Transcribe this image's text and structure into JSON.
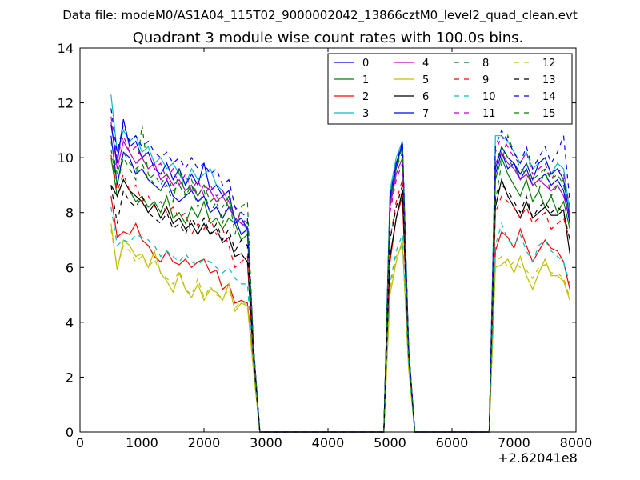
{
  "header": {
    "suptitle": "Data file: modeM0/AS1A04_115T02_9000002042_13866cztM0_level2_quad_clean.evt"
  },
  "chart_data": {
    "type": "line",
    "title": "Quadrant 3 module wise count rates with 100.0s bins.",
    "xlabel": "",
    "ylabel": "",
    "x_offset_label": "+2.62041e8",
    "xlim": [
      0,
      8000
    ],
    "ylim": [
      0,
      14
    ],
    "xticks": [
      0,
      1000,
      2000,
      3000,
      4000,
      5000,
      6000,
      7000,
      8000
    ],
    "xtick_labels": [
      "0",
      "1000",
      "2000",
      "3000",
      "4000",
      "5000",
      "6000",
      "7000",
      "8000"
    ],
    "yticks": [
      0,
      2,
      4,
      6,
      8,
      10,
      12,
      14
    ],
    "ytick_labels": [
      "0",
      "2",
      "4",
      "6",
      "8",
      "10",
      "12",
      "14"
    ],
    "grid": false,
    "legend_position": "top-right",
    "legend_columns": 4,
    "x": [
      500,
      600,
      700,
      800,
      900,
      1000,
      1100,
      1200,
      1300,
      1400,
      1500,
      1600,
      1700,
      1800,
      1900,
      2000,
      2100,
      2200,
      2300,
      2400,
      2500,
      2600,
      2700,
      2800,
      2900,
      3000,
      3500,
      4000,
      4500,
      4900,
      5000,
      5100,
      5200,
      5300,
      5400,
      5500,
      5600,
      6000,
      6500,
      6600,
      6700,
      6800,
      6900,
      7000,
      7100,
      7200,
      7300,
      7400,
      7500,
      7600,
      7700,
      7800,
      7900
    ],
    "series": [
      {
        "name": "0",
        "color": "#0000ff",
        "dash": "solid",
        "values": [
          10.8,
          9.0,
          10.2,
          10.0,
          9.4,
          9.6,
          9.2,
          9.0,
          8.8,
          9.2,
          8.6,
          8.4,
          8.6,
          8.8,
          8.4,
          8.6,
          8.0,
          8.2,
          7.8,
          8.2,
          7.8,
          7.2,
          7.4,
          3.0,
          0,
          0,
          0,
          0,
          0,
          0,
          8.4,
          9.6,
          10.6,
          3.0,
          0,
          0,
          0,
          0,
          0,
          0,
          9.4,
          10.2,
          9.6,
          9.8,
          9.2,
          9.6,
          9.0,
          9.2,
          9.4,
          9.0,
          9.2,
          8.8,
          7.6
        ]
      },
      {
        "name": "1",
        "color": "#008000",
        "dash": "solid",
        "values": [
          10.0,
          8.6,
          9.2,
          8.8,
          8.4,
          8.6,
          8.2,
          8.4,
          8.0,
          8.6,
          7.8,
          8.0,
          7.6,
          8.2,
          7.8,
          8.4,
          7.6,
          7.8,
          7.4,
          7.8,
          7.6,
          7.0,
          7.2,
          2.9,
          0,
          0,
          0,
          0,
          0,
          0,
          8.6,
          9.8,
          10.4,
          3.0,
          0,
          0,
          0,
          0,
          0,
          0,
          9.2,
          10.0,
          9.4,
          9.0,
          8.6,
          9.2,
          8.4,
          8.8,
          8.2,
          8.6,
          8.0,
          8.4,
          7.4
        ]
      },
      {
        "name": "2",
        "color": "#ff0000",
        "dash": "solid",
        "values": [
          8.6,
          7.1,
          7.3,
          7.2,
          7.6,
          7.0,
          6.8,
          6.4,
          6.2,
          6.6,
          6.2,
          6.1,
          6.3,
          6.0,
          6.2,
          6.3,
          5.8,
          5.9,
          5.2,
          5.4,
          4.7,
          4.8,
          4.7,
          2.4,
          0,
          0,
          0,
          0,
          0,
          0,
          6.2,
          7.8,
          8.6,
          2.6,
          0,
          0,
          0,
          0,
          0,
          0,
          6.6,
          7.3,
          7.1,
          6.7,
          7.4,
          6.8,
          6.2,
          6.6,
          7.0,
          6.7,
          6.6,
          6.2,
          5.2
        ]
      },
      {
        "name": "3",
        "color": "#00bfbf",
        "dash": "solid",
        "values": [
          12.3,
          10.2,
          11.0,
          10.6,
          10.8,
          10.2,
          10.4,
          9.8,
          10.0,
          9.6,
          9.8,
          9.4,
          9.0,
          9.6,
          9.2,
          9.4,
          9.6,
          9.0,
          8.8,
          8.4,
          7.8,
          7.6,
          7.4,
          3.0,
          0,
          0,
          0,
          0,
          0,
          0,
          8.8,
          10.0,
          10.6,
          3.1,
          0,
          0,
          0,
          0,
          0,
          0,
          10.8,
          10.8,
          10.6,
          10.2,
          9.8,
          10.2,
          9.6,
          9.8,
          10.0,
          9.4,
          9.8,
          9.6,
          8.0
        ]
      },
      {
        "name": "4",
        "color": "#bf00bf",
        "dash": "solid",
        "values": [
          11.3,
          9.6,
          10.6,
          10.2,
          9.8,
          10.0,
          9.6,
          9.8,
          9.2,
          9.4,
          9.0,
          9.2,
          8.8,
          9.0,
          8.6,
          9.0,
          8.8,
          8.4,
          8.6,
          8.2,
          7.8,
          7.6,
          7.5,
          3.0,
          0,
          0,
          0,
          0,
          0,
          0,
          8.2,
          9.4,
          10.0,
          3.0,
          0,
          0,
          0,
          0,
          0,
          0,
          9.8,
          10.2,
          9.8,
          9.6,
          9.2,
          9.4,
          9.0,
          9.2,
          9.0,
          8.8,
          9.0,
          8.6,
          7.8
        ]
      },
      {
        "name": "5",
        "color": "#bfbf00",
        "dash": "solid",
        "values": [
          7.6,
          5.9,
          7.0,
          6.8,
          6.4,
          6.5,
          6.0,
          6.6,
          5.8,
          5.5,
          5.1,
          5.8,
          5.2,
          4.9,
          5.4,
          4.8,
          5.2,
          5.1,
          4.8,
          5.4,
          4.4,
          4.7,
          4.6,
          2.2,
          0,
          0,
          0,
          0,
          0,
          0,
          5.0,
          6.2,
          7.0,
          2.3,
          0,
          0,
          0,
          0,
          0,
          0,
          6.0,
          6.1,
          6.3,
          5.8,
          6.4,
          5.7,
          5.2,
          5.8,
          6.3,
          5.7,
          5.7,
          5.5,
          4.8
        ]
      },
      {
        "name": "6",
        "color": "#000000",
        "dash": "solid",
        "values": [
          9.0,
          8.6,
          9.2,
          8.8,
          8.6,
          8.4,
          8.0,
          8.3,
          7.8,
          8.2,
          7.6,
          7.8,
          7.4,
          7.6,
          7.2,
          7.6,
          7.2,
          7.4,
          6.9,
          7.1,
          6.4,
          6.5,
          6.2,
          2.6,
          0,
          0,
          0,
          0,
          0,
          0,
          6.4,
          7.8,
          8.8,
          2.8,
          0,
          0,
          0,
          0,
          0,
          0,
          8.2,
          9.2,
          8.6,
          8.2,
          7.8,
          8.4,
          7.8,
          8.0,
          8.2,
          7.9,
          7.9,
          8.1,
          6.5
        ]
      },
      {
        "name": "7",
        "color": "#0000ff",
        "dash": "solid",
        "values": [
          11.2,
          9.8,
          11.4,
          10.4,
          10.6,
          10.0,
          10.2,
          9.6,
          9.4,
          9.8,
          9.2,
          9.6,
          9.0,
          9.4,
          9.0,
          9.8,
          8.8,
          9.0,
          8.6,
          8.8,
          7.6,
          7.8,
          7.4,
          3.0,
          0,
          0,
          0,
          0,
          0,
          0,
          8.4,
          9.8,
          10.5,
          3.0,
          0,
          0,
          0,
          0,
          0,
          0,
          9.6,
          10.4,
          10.0,
          9.8,
          9.4,
          9.8,
          9.2,
          9.8,
          10.0,
          9.4,
          9.6,
          9.2,
          7.8
        ]
      },
      {
        "name": "8",
        "color": "#008000",
        "dash": "dashed",
        "values": [
          10.3,
          9.0,
          10.0,
          9.6,
          9.2,
          11.2,
          9.4,
          9.0,
          8.8,
          9.0,
          8.4,
          9.6,
          8.6,
          9.0,
          8.2,
          8.8,
          8.0,
          8.4,
          7.6,
          8.6,
          7.2,
          8.2,
          8.4,
          3.0,
          0,
          0,
          0,
          0,
          0,
          0,
          8.6,
          9.6,
          10.4,
          3.0,
          0,
          0,
          0,
          0,
          0,
          0,
          8.4,
          9.8,
          10.8,
          10.2,
          9.6,
          9.4,
          9.2,
          8.8,
          9.6,
          8.6,
          9.0,
          9.2,
          8.2
        ]
      },
      {
        "name": "9",
        "color": "#ff0000",
        "dash": "dashed",
        "values": [
          10.1,
          8.8,
          9.4,
          8.8,
          9.0,
          8.4,
          8.6,
          8.2,
          8.4,
          8.0,
          8.2,
          7.8,
          8.0,
          7.2,
          7.6,
          7.4,
          7.8,
          7.2,
          7.4,
          6.8,
          6.0,
          6.2,
          6.4,
          2.6,
          0,
          0,
          0,
          0,
          0,
          0,
          7.0,
          8.4,
          9.2,
          2.9,
          0,
          0,
          0,
          0,
          0,
          0,
          8.0,
          8.6,
          8.4,
          8.2,
          7.8,
          8.2,
          7.6,
          7.8,
          8.0,
          7.4,
          7.6,
          7.8,
          7.0
        ]
      },
      {
        "name": "10",
        "color": "#00bfbf",
        "dash": "dashed",
        "values": [
          8.2,
          6.8,
          7.0,
          6.9,
          7.2,
          7.1,
          7.0,
          6.8,
          6.4,
          6.6,
          6.4,
          6.2,
          6.5,
          6.2,
          6.1,
          6.3,
          6.2,
          6.0,
          5.8,
          6.0,
          5.6,
          5.4,
          5.4,
          2.3,
          0,
          0,
          0,
          0,
          0,
          0,
          5.4,
          6.6,
          7.2,
          2.4,
          0,
          0,
          0,
          0,
          0,
          0,
          6.8,
          7.6,
          7.0,
          6.8,
          7.2,
          6.6,
          6.2,
          6.8,
          7.0,
          6.6,
          6.4,
          6.2,
          5.4
        ]
      },
      {
        "name": "11",
        "color": "#bf00bf",
        "dash": "dashed",
        "values": [
          11.5,
          10.0,
          10.8,
          10.2,
          10.4,
          10.0,
          10.2,
          9.6,
          9.8,
          9.2,
          9.6,
          9.0,
          9.4,
          8.8,
          9.2,
          8.6,
          9.0,
          8.6,
          8.8,
          8.4,
          8.2,
          7.6,
          7.8,
          3.0,
          0,
          0,
          0,
          0,
          0,
          0,
          8.0,
          9.2,
          9.8,
          3.0,
          0,
          0,
          0,
          0,
          0,
          0,
          10.2,
          10.8,
          10.4,
          10.0,
          9.8,
          10.2,
          9.4,
          9.6,
          9.8,
          9.2,
          9.6,
          9.4,
          8.2
        ]
      },
      {
        "name": "12",
        "color": "#bfbf00",
        "dash": "dashed",
        "values": [
          7.4,
          6.0,
          6.8,
          6.6,
          6.2,
          6.4,
          6.0,
          6.3,
          5.8,
          5.6,
          5.4,
          5.9,
          5.2,
          5.0,
          5.6,
          4.9,
          5.3,
          5.0,
          4.9,
          5.2,
          4.5,
          4.8,
          4.6,
          2.2,
          0,
          0,
          0,
          0,
          0,
          0,
          5.2,
          6.4,
          6.8,
          2.3,
          0,
          0,
          0,
          0,
          0,
          0,
          6.2,
          6.4,
          6.0,
          6.2,
          6.0,
          5.9,
          5.6,
          6.0,
          6.1,
          5.8,
          5.8,
          5.6,
          4.9
        ]
      },
      {
        "name": "13",
        "color": "#000000",
        "dash": "dashed",
        "values": [
          9.0,
          7.6,
          8.8,
          8.4,
          8.2,
          8.6,
          8.0,
          7.8,
          7.6,
          8.0,
          7.4,
          7.6,
          7.2,
          7.8,
          7.4,
          7.8,
          7.2,
          7.6,
          7.0,
          7.4,
          6.6,
          7.0,
          6.8,
          2.8,
          0,
          0,
          0,
          0,
          0,
          0,
          7.0,
          8.2,
          9.0,
          2.8,
          0,
          0,
          0,
          0,
          0,
          0,
          8.6,
          9.0,
          8.8,
          8.4,
          8.0,
          8.6,
          7.8,
          8.2,
          8.4,
          8.0,
          8.2,
          8.0,
          7.0
        ]
      },
      {
        "name": "14",
        "color": "#0000ff",
        "dash": "dashed",
        "values": [
          11.8,
          10.2,
          11.2,
          10.6,
          10.8,
          10.4,
          10.6,
          10.2,
          10.0,
          10.2,
          9.8,
          10.0,
          9.6,
          10.0,
          9.6,
          9.8,
          9.4,
          9.6,
          9.0,
          9.2,
          8.2,
          8.0,
          7.8,
          3.1,
          0,
          0,
          0,
          0,
          0,
          0,
          8.6,
          9.8,
          10.6,
          3.1,
          0,
          0,
          0,
          0,
          0,
          0,
          10.4,
          11.0,
          10.6,
          10.2,
          9.8,
          10.4,
          9.6,
          10.0,
          10.4,
          9.8,
          10.2,
          10.8,
          8.4
        ]
      },
      {
        "name": "15",
        "color": "#008000",
        "dash": "dashed",
        "values": [
          10.6,
          9.4,
          10.2,
          9.8,
          9.6,
          9.8,
          9.2,
          9.4,
          9.0,
          9.4,
          8.8,
          9.0,
          8.6,
          9.2,
          8.6,
          9.0,
          8.4,
          8.6,
          8.2,
          8.6,
          7.8,
          7.8,
          7.6,
          3.0,
          0,
          0,
          0,
          0,
          0,
          0,
          8.4,
          9.6,
          10.2,
          3.0,
          0,
          0,
          0,
          0,
          0,
          0,
          9.8,
          10.4,
          10.0,
          9.6,
          9.4,
          9.8,
          9.2,
          9.4,
          9.6,
          9.2,
          9.4,
          9.0,
          7.8
        ]
      }
    ]
  }
}
